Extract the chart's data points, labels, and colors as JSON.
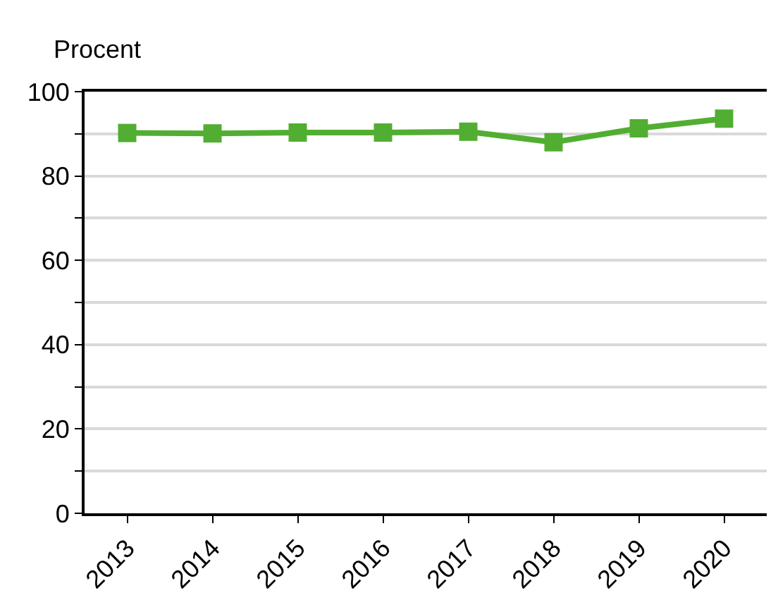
{
  "chart_data": {
    "type": "line",
    "ylabel": "Procent",
    "categories": [
      "2013",
      "2014",
      "2015",
      "2016",
      "2017",
      "2018",
      "2019",
      "2020"
    ],
    "series": [
      {
        "color": "#52ae32",
        "values": [
          90.2,
          90.1,
          90.3,
          90.3,
          90.5,
          88.0,
          91.3,
          93.6
        ]
      }
    ],
    "ylim": [
      0,
      100
    ],
    "yticks": [
      0,
      {
        "value": 10,
        "label": null
      },
      20,
      {
        "value": 30,
        "label": null
      },
      40,
      {
        "value": 50,
        "label": null
      },
      60,
      {
        "value": 70,
        "label": null
      },
      80,
      {
        "value": 90,
        "label": null
      },
      100
    ],
    "grid": "y",
    "marker": "square",
    "line_style": "solid"
  }
}
